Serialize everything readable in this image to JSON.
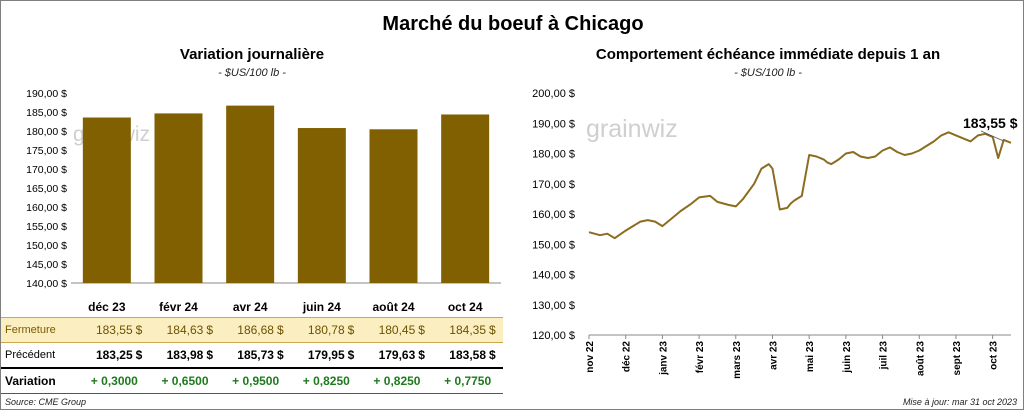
{
  "title": "Marché du boeuf à Chicago",
  "left": {
    "subtitle": "Variation journalière",
    "unit": "- $US/100 lb -",
    "watermark": "grainwiz"
  },
  "right": {
    "subtitle": "Comportement  échéance immédiate depuis 1 an",
    "unit": "- $US/100 lb -",
    "watermark": "grainwiz",
    "last_label": "183,55 $"
  },
  "table": {
    "row_labels": {
      "close": "Fermeture",
      "prev": "Précédent",
      "var": "Variation"
    },
    "currency": "$",
    "close": [
      "183,55",
      "184,63",
      "186,68",
      "180,78",
      "180,45",
      "184,35"
    ],
    "prev": [
      "183,25",
      "183,98",
      "185,73",
      "179,95",
      "179,63",
      "183,58"
    ],
    "var": [
      "+ 0,3000",
      "+ 0,6500",
      "+ 0,9500",
      "+ 0,8250",
      "+ 0,8250",
      "+ 0,7750"
    ]
  },
  "footer": {
    "source": "Source: CME Group",
    "updated": "Mise à jour: mar 31 oct 2023"
  },
  "chart_data": [
    {
      "type": "bar",
      "title": "Variation journalière",
      "categories": [
        "déc 23",
        "févr 24",
        "avr 24",
        "juin 24",
        "août 24",
        "oct 24"
      ],
      "values": [
        183.55,
        184.63,
        186.68,
        180.78,
        180.45,
        184.35
      ],
      "ylim": [
        140,
        190
      ],
      "yticks": [
        "140,00 $",
        "145,00 $",
        "150,00 $",
        "155,00 $",
        "160,00 $",
        "165,00 $",
        "170,00 $",
        "175,00 $",
        "180,00 $",
        "185,00 $",
        "190,00 $"
      ],
      "bar_color": "#806000",
      "grid": false
    },
    {
      "type": "line",
      "title": "Comportement  échéance immédiate depuis 1 an",
      "x_ticks": [
        "nov 22",
        "déc 22",
        "janv 23",
        "févr 23",
        "mars 23",
        "avr 23",
        "mai 23",
        "juin 23",
        "juil 23",
        "août 23",
        "sept 23",
        "oct 23"
      ],
      "x": [
        0,
        0.3,
        0.5,
        0.7,
        1.0,
        1.2,
        1.4,
        1.6,
        1.8,
        2.0,
        2.2,
        2.5,
        2.8,
        3.0,
        3.3,
        3.5,
        3.8,
        4.0,
        4.2,
        4.5,
        4.7,
        4.9,
        5.0,
        5.2,
        5.4,
        5.5,
        5.6,
        5.8,
        6.0,
        6.2,
        6.4,
        6.5,
        6.6,
        6.8,
        7.0,
        7.2,
        7.4,
        7.6,
        7.8,
        8.0,
        8.2,
        8.4,
        8.6,
        8.8,
        9.0,
        9.2,
        9.4,
        9.6,
        9.8,
        10.0,
        10.2,
        10.4,
        10.6,
        10.8,
        11.0,
        11.15,
        11.3,
        11.5
      ],
      "y": [
        154,
        153,
        153.5,
        152,
        154.5,
        156,
        157.5,
        158,
        157.5,
        156,
        158,
        161,
        163.5,
        165.5,
        166,
        164,
        163,
        162.5,
        165,
        170,
        175,
        176.5,
        175,
        161.5,
        162,
        163.5,
        164.5,
        166,
        179.5,
        179,
        178,
        177,
        176.5,
        178,
        180,
        180.5,
        179,
        178.5,
        179,
        181,
        182,
        180.5,
        179.5,
        180,
        181,
        182.5,
        184,
        186,
        187,
        186,
        185,
        184,
        186,
        186.5,
        185.5,
        178.5,
        184.5,
        183.55
      ],
      "ylim": [
        120,
        200
      ],
      "yticks": [
        "120,00 $",
        "130,00 $",
        "140,00 $",
        "150,00 $",
        "160,00 $",
        "170,00 $",
        "180,00 $",
        "190,00 $",
        "200,00 $"
      ],
      "line_color": "#8b6d1f",
      "grid": false
    }
  ]
}
